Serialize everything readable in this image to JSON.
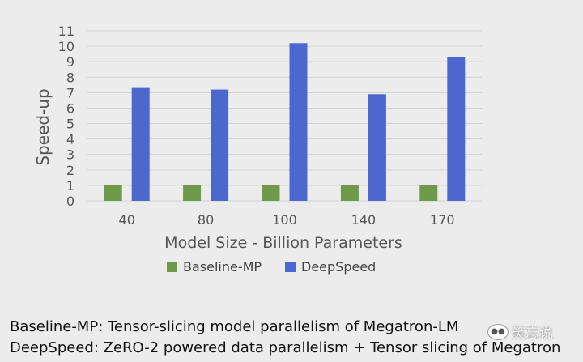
{
  "chart_data": {
    "type": "bar",
    "categories": [
      "40",
      "80",
      "100",
      "140",
      "170"
    ],
    "series": [
      {
        "name": "Baseline-MP",
        "values": [
          1,
          1,
          1,
          1,
          1
        ],
        "color": "#6f9a4a"
      },
      {
        "name": "DeepSpeed",
        "values": [
          7.3,
          7.2,
          10.2,
          6.9,
          9.3
        ],
        "color": "#4c68cf"
      }
    ],
    "xlabel": "Model Size - Billion Parameters",
    "ylabel": "Speed-up",
    "ylim": [
      0,
      11
    ],
    "yticks": [
      "0",
      "1",
      "2",
      "3",
      "4",
      "5",
      "6",
      "7",
      "8",
      "9",
      "10",
      "11"
    ],
    "grid": true,
    "legend_position": "bottom"
  },
  "captions": {
    "line1": "Baseline-MP: Tensor-slicing model parallelism of Megatron-LM",
    "line2": "DeepSpeed: ZeRO-2 powered data parallelism + Tensor slicing of Megatron"
  },
  "watermark": {
    "text": "笑忘说"
  }
}
